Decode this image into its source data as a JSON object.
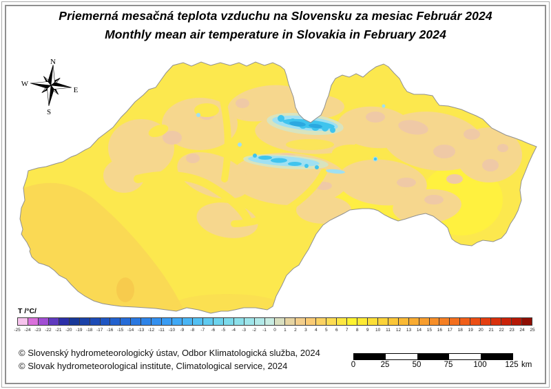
{
  "title": {
    "line1_sk": "Priemerná mesačná teplota vzduchu na Slovensku za mesiac Február 2024",
    "line2_en": "Monthly mean air temperature in Slovakia in February 2024"
  },
  "compass": {
    "north": "N",
    "south": "S",
    "east": "E",
    "west": "W"
  },
  "legend": {
    "label": "T /°C/",
    "ticks": [
      "-25",
      "-24",
      "-23",
      "-22",
      "-21",
      "-20",
      "-19",
      "-18",
      "-17",
      "-16",
      "-15",
      "-14",
      "-13",
      "-12",
      "-11",
      "-10",
      "-9",
      "-8",
      "-7",
      "-6",
      "-5",
      "-4",
      "-3",
      "-2",
      "-1",
      "0",
      "1",
      "2",
      "3",
      "4",
      "5",
      "6",
      "7",
      "8",
      "9",
      "10",
      "11",
      "12",
      "13",
      "14",
      "15",
      "16",
      "17",
      "18",
      "19",
      "20",
      "21",
      "22",
      "23",
      "24",
      "25"
    ],
    "cell_colors": [
      "#F8C4EE",
      "#DA70DC",
      "#A14ED4",
      "#5F3ABF",
      "#2B2FA8",
      "#183898",
      "#1A41A8",
      "#1C4BB6",
      "#1F56C3",
      "#2261CE",
      "#266CD8",
      "#2A78E1",
      "#2E84E9",
      "#3390EF",
      "#399CF4",
      "#40A9F6",
      "#49B5F5",
      "#53C0F3",
      "#5FCAF0",
      "#6CD3ED",
      "#7BDAEB",
      "#8CE0EA",
      "#9EE5EA",
      "#B2E9E8",
      "#C8ECE2",
      "#D9DFC0",
      "#E6D4A2",
      "#F3CE8B",
      "#FACB74",
      "#FBD262",
      "#FDDC52",
      "#FEE741",
      "#FFF32F",
      "#FEEA33",
      "#FDDF36",
      "#FCD338",
      "#FBC637",
      "#FAB934",
      "#F9AB31",
      "#F89D2D",
      "#F78E28",
      "#F67F23",
      "#F46F1E",
      "#F15F19",
      "#EC4E14",
      "#E43E10",
      "#D9300C",
      "#CA2309",
      "#B61806",
      "#8F0E03"
    ]
  },
  "map": {
    "palette": {
      "base": "#FCE84E",
      "bright": "#FFF23C",
      "warm": "#FAD954",
      "warm_core": "#F7CB4D",
      "tan": "#F6D78E",
      "pink": "#EFC9A6",
      "sage": "#D5E6C4",
      "cyan_light": "#9FE0F2",
      "cyan": "#3FC4EE",
      "cyan_deep": "#2BA8E0",
      "border": "#909090"
    }
  },
  "scalebar": {
    "labels": [
      "0",
      "25",
      "50",
      "75",
      "100",
      "125"
    ],
    "unit": "km"
  },
  "copyright": {
    "line1": "© Slovenský hydrometeorologický ústav, Odbor Klimatologická služba, 2024",
    "line2": "© Slovak hydrometeorological institute, Climatological service, 2024"
  }
}
